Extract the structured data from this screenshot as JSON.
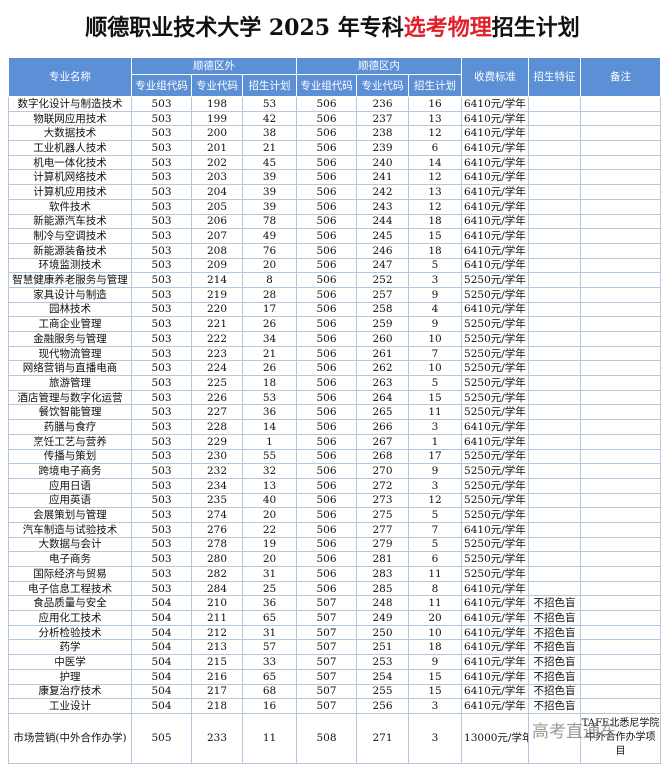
{
  "header": {
    "title_prefix": "顺德职业技术大学 2025 年专科",
    "title_highlight": "选考物理",
    "title_suffix": "招生计划"
  },
  "table": {
    "columns": {
      "name": "专业名称",
      "group_out": "顺德区外",
      "group_in": "顺德区内",
      "sub": [
        "专业组代码",
        "专业代码",
        "招生计划",
        "专业组代码",
        "专业代码",
        "招生计划"
      ],
      "fee": "收费标准",
      "feature": "招生特征",
      "note": "备注"
    },
    "rows": [
      [
        "数字化设计与制造技术",
        503,
        198,
        53,
        506,
        236,
        16,
        "6410元/学年"
      ],
      [
        "物联网应用技术",
        503,
        199,
        42,
        506,
        237,
        13,
        "6410元/学年"
      ],
      [
        "大数据技术",
        503,
        200,
        38,
        506,
        238,
        12,
        "6410元/学年"
      ],
      [
        "工业机器人技术",
        503,
        201,
        21,
        506,
        239,
        6,
        "6410元/学年"
      ],
      [
        "机电一体化技术",
        503,
        202,
        45,
        506,
        240,
        14,
        "6410元/学年"
      ],
      [
        "计算机网络技术",
        503,
        203,
        39,
        506,
        241,
        12,
        "6410元/学年"
      ],
      [
        "计算机应用技术",
        503,
        204,
        39,
        506,
        242,
        13,
        "6410元/学年"
      ],
      [
        "软件技术",
        503,
        205,
        39,
        506,
        243,
        12,
        "6410元/学年"
      ],
      [
        "新能源汽车技术",
        503,
        206,
        78,
        506,
        244,
        18,
        "6410元/学年"
      ],
      [
        "制冷与空调技术",
        503,
        207,
        49,
        506,
        245,
        15,
        "6410元/学年"
      ],
      [
        "新能源装备技术",
        503,
        208,
        76,
        506,
        246,
        18,
        "6410元/学年"
      ],
      [
        "环境监测技术",
        503,
        209,
        20,
        506,
        247,
        5,
        "6410元/学年"
      ],
      [
        "智慧健康养老服务与管理",
        503,
        214,
        8,
        506,
        252,
        3,
        "5250元/学年"
      ],
      [
        "家具设计与制造",
        503,
        219,
        28,
        506,
        257,
        9,
        "5250元/学年"
      ],
      [
        "园林技术",
        503,
        220,
        17,
        506,
        258,
        4,
        "6410元/学年"
      ],
      [
        "工商企业管理",
        503,
        221,
        26,
        506,
        259,
        9,
        "5250元/学年"
      ],
      [
        "金融服务与管理",
        503,
        222,
        34,
        506,
        260,
        10,
        "5250元/学年"
      ],
      [
        "现代物流管理",
        503,
        223,
        21,
        506,
        261,
        7,
        "5250元/学年"
      ],
      [
        "网络营销与直播电商",
        503,
        224,
        26,
        506,
        262,
        10,
        "5250元/学年"
      ],
      [
        "旅游管理",
        503,
        225,
        18,
        506,
        263,
        5,
        "5250元/学年"
      ],
      [
        "酒店管理与数字化运营",
        503,
        226,
        53,
        506,
        264,
        15,
        "5250元/学年"
      ],
      [
        "餐饮智能管理",
        503,
        227,
        36,
        506,
        265,
        11,
        "5250元/学年"
      ],
      [
        "药膳与食疗",
        503,
        228,
        14,
        506,
        266,
        3,
        "6410元/学年"
      ],
      [
        "烹饪工艺与营养",
        503,
        229,
        1,
        506,
        267,
        1,
        "6410元/学年"
      ],
      [
        "传播与策划",
        503,
        230,
        55,
        506,
        268,
        17,
        "5250元/学年"
      ],
      [
        "跨境电子商务",
        503,
        232,
        32,
        506,
        270,
        9,
        "5250元/学年"
      ],
      [
        "应用日语",
        503,
        234,
        13,
        506,
        272,
        3,
        "5250元/学年"
      ],
      [
        "应用英语",
        503,
        235,
        40,
        506,
        273,
        12,
        "5250元/学年"
      ],
      [
        "会展策划与管理",
        503,
        274,
        20,
        506,
        275,
        5,
        "5250元/学年"
      ],
      [
        "汽车制造与试验技术",
        503,
        276,
        22,
        506,
        277,
        7,
        "6410元/学年"
      ],
      [
        "大数据与会计",
        503,
        278,
        19,
        506,
        279,
        5,
        "5250元/学年"
      ],
      [
        "电子商务",
        503,
        280,
        20,
        506,
        281,
        6,
        "5250元/学年"
      ],
      [
        "国际经济与贸易",
        503,
        282,
        31,
        506,
        283,
        11,
        "5250元/学年"
      ],
      [
        "电子信息工程技术",
        503,
        284,
        25,
        506,
        285,
        8,
        "6410元/学年"
      ],
      [
        "食品质量与安全",
        504,
        210,
        36,
        507,
        248,
        11,
        "6410元/学年",
        "不招色盲"
      ],
      [
        "应用化工技术",
        504,
        211,
        65,
        507,
        249,
        20,
        "6410元/学年",
        "不招色盲"
      ],
      [
        "分析检验技术",
        504,
        212,
        31,
        507,
        250,
        10,
        "6410元/学年",
        "不招色盲"
      ],
      [
        "药学",
        504,
        213,
        57,
        507,
        251,
        18,
        "6410元/学年",
        "不招色盲"
      ],
      [
        "中医学",
        504,
        215,
        33,
        507,
        253,
        9,
        "6410元/学年",
        "不招色盲"
      ],
      [
        "护理",
        504,
        216,
        65,
        507,
        254,
        15,
        "6410元/学年",
        "不招色盲"
      ],
      [
        "康复治疗技术",
        504,
        217,
        68,
        507,
        255,
        15,
        "6410元/学年",
        "不招色盲"
      ],
      [
        "工业设计",
        504,
        218,
        16,
        507,
        256,
        3,
        "6410元/学年",
        "不招色盲"
      ]
    ],
    "last_row": {
      "name": "市场营销(中外合作办学)",
      "cells": [
        505,
        233,
        11,
        508,
        271,
        3,
        "13000元/学年"
      ],
      "note": "TAFE北悉尼学院中外合作办学项目"
    }
  },
  "watermark": "高考直通车"
}
